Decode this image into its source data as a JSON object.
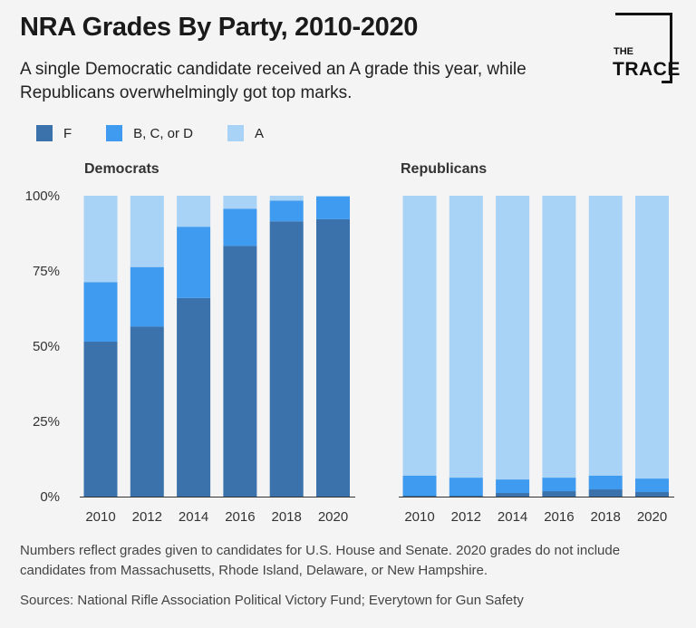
{
  "header": {
    "title": "NRA Grades By Party, 2010-2020",
    "subtitle": "A single Democratic candidate received an A grade this year, while Republicans overwhelmingly got top marks."
  },
  "logo": {
    "line1": "THE",
    "line2": "TRACE"
  },
  "legend": [
    {
      "label": "F",
      "color": "#3b72ac"
    },
    {
      "label": "B, C, or D",
      "color": "#3f9bf0"
    },
    {
      "label": "A",
      "color": "#a9d2f7"
    }
  ],
  "chart_data": {
    "type": "bar",
    "stacked": true,
    "ylim": [
      0,
      100
    ],
    "yticks": [
      0,
      25,
      50,
      75,
      100
    ],
    "ytick_labels": [
      "0%",
      "25%",
      "50%",
      "75%",
      "100%"
    ],
    "categories": [
      "2010",
      "2012",
      "2014",
      "2016",
      "2018",
      "2020"
    ],
    "panels": [
      {
        "title": "Democrats",
        "series": [
          {
            "name": "F",
            "color": "#3b72ac",
            "values": [
              51.5,
              56.5,
              66,
              83.3,
              91.5,
              92.2
            ]
          },
          {
            "name": "B, C, or D",
            "color": "#3f9bf0",
            "values": [
              19.8,
              19.8,
              23.7,
              12.4,
              6.9,
              7.5
            ]
          },
          {
            "name": "A",
            "color": "#a9d2f7",
            "values": [
              28.7,
              23.7,
              10.3,
              4.3,
              1.6,
              0.3
            ]
          }
        ]
      },
      {
        "title": "Republicans",
        "series": [
          {
            "name": "F",
            "color": "#3b72ac",
            "values": [
              0.3,
              0.3,
              1.2,
              1.8,
              2.4,
              1.5
            ]
          },
          {
            "name": "B, C, or D",
            "color": "#3f9bf0",
            "values": [
              6.7,
              6.0,
              4.5,
              4.5,
              4.6,
              4.5
            ]
          },
          {
            "name": "A",
            "color": "#a9d2f7",
            "values": [
              93.0,
              93.7,
              94.3,
              93.7,
              93.0,
              94.0
            ]
          }
        ]
      }
    ]
  },
  "footer": {
    "notes": "Numbers reflect grades given to candidates for U.S. House and Senate. 2020 grades do not include candidates from Massachusetts, Rhode Island, Delaware, or New Hampshire.",
    "sources": "Sources: National Rifle Association Political Victory Fund; Everytown for Gun Safety"
  }
}
